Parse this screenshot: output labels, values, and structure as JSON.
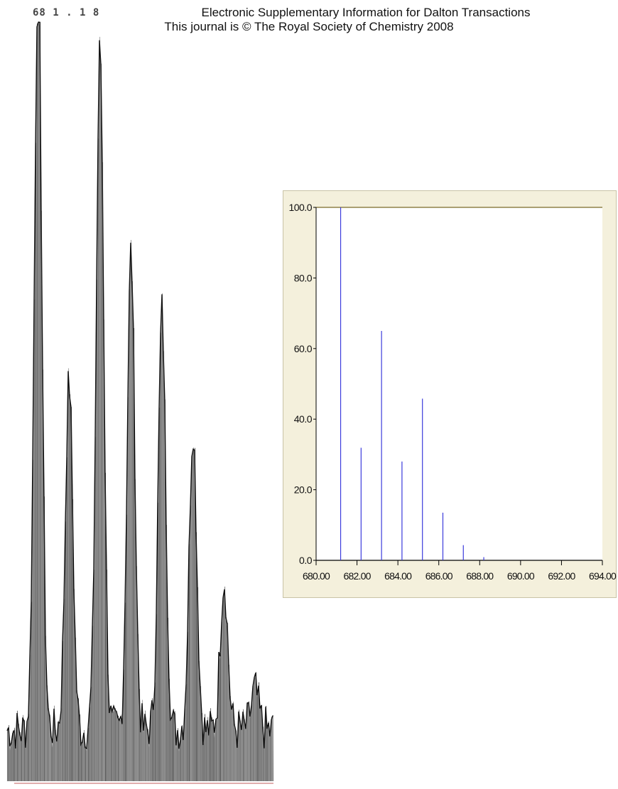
{
  "header": {
    "line1": "Electronic Supplementary Information for Dalton Transactions",
    "line2": "This journal is © The Royal Society of Chemistry 2008",
    "garbled_prefix": "68 1 . 1 8"
  },
  "colors": {
    "stick": "#3b3bdc",
    "axis": "#000000",
    "frame_top": "#7a6a2a",
    "panel_bg": "#f4f0dc",
    "observed_spectrum": "#2a2a2a"
  },
  "chart_data": [
    {
      "type": "bar",
      "description_role": "observed spectrum (left, scanned)",
      "x": [
        680.0,
        681.0,
        682.0,
        683.0,
        684.0,
        685.0,
        686.0,
        687.0,
        688.0
      ],
      "values": [
        12,
        100,
        46,
        90,
        63,
        55,
        40,
        20,
        5
      ],
      "xlabel": "",
      "ylabel": "",
      "ylim": [
        0,
        100
      ]
    },
    {
      "type": "bar",
      "description_role": "calculated isotope pattern (right panel)",
      "x": [
        681.2,
        682.2,
        683.2,
        684.2,
        685.2,
        686.2,
        687.2,
        688.2
      ],
      "values": [
        100,
        31.9,
        65.0,
        28.0,
        45.8,
        13.5,
        4.3,
        0.9
      ],
      "xlim": [
        680,
        694
      ],
      "ylim": [
        0,
        100
      ],
      "x_ticks": [
        "680.00",
        "682.00",
        "684.00",
        "686.00",
        "688.00",
        "690.00",
        "692.00",
        "694.00"
      ],
      "y_ticks": [
        "0.0",
        "20.0",
        "40.0",
        "60.0",
        "80.0",
        "100.0"
      ],
      "grid": false,
      "xlabel": "",
      "ylabel": ""
    }
  ]
}
